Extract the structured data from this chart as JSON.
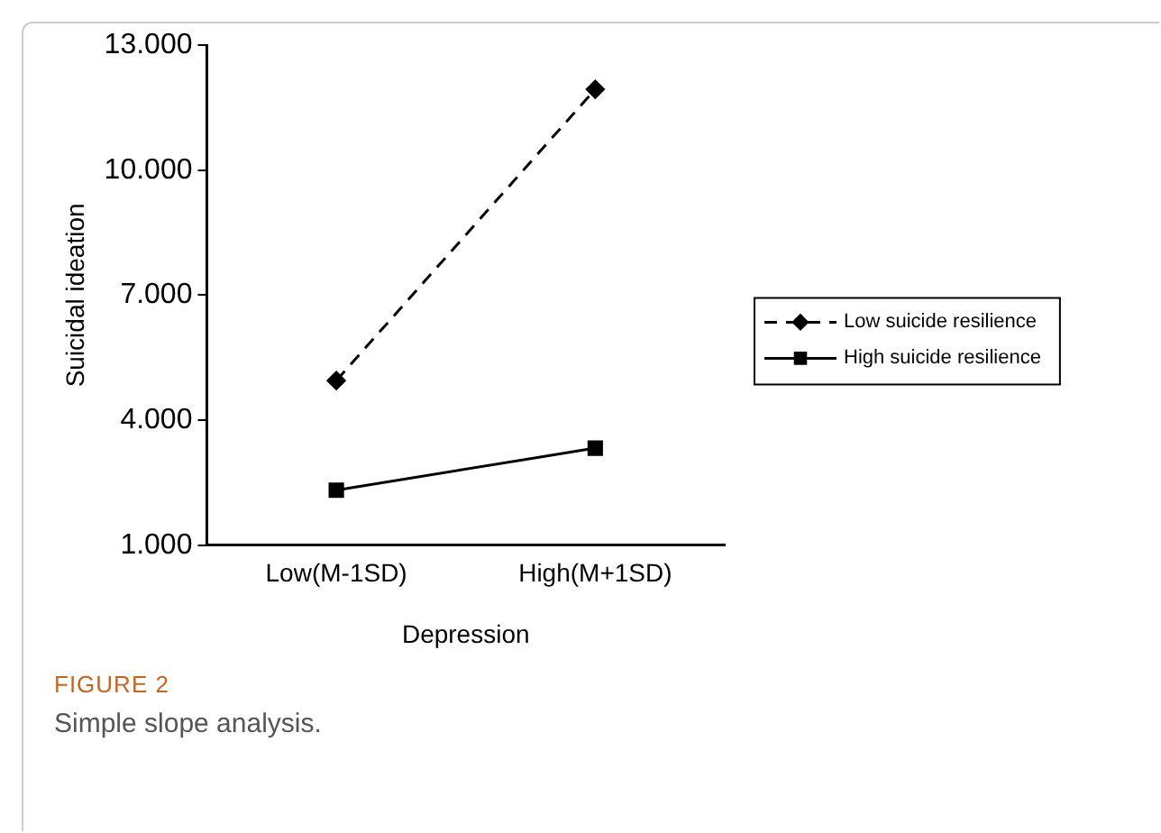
{
  "chart_data": {
    "type": "line",
    "xlabel": "Depression",
    "ylabel": "Suicidal ideation",
    "categories": [
      "Low(M-1SD)",
      "High(M+1SD)"
    ],
    "series": [
      {
        "name": "Low suicide resilience",
        "color": "#000000",
        "values": [
          4.95,
          11.94
        ],
        "marker": "diamond",
        "line_style": "dashed"
      },
      {
        "name": "High suicide resilience",
        "color": "#000000",
        "values": [
          2.32,
          3.33
        ],
        "marker": "square",
        "line_style": "solid"
      }
    ],
    "ylim": [
      1,
      13
    ],
    "yticks": [
      {
        "value": 1,
        "label": "1.000"
      },
      {
        "value": 4,
        "label": "4.000"
      },
      {
        "value": 7,
        "label": "7.000"
      },
      {
        "value": 10,
        "label": "10.000"
      },
      {
        "value": 13,
        "label": "13.000"
      }
    ],
    "grid": false,
    "legend": "right",
    "annotations": [
      "FIGURE 2",
      "Simple slope analysis."
    ]
  }
}
